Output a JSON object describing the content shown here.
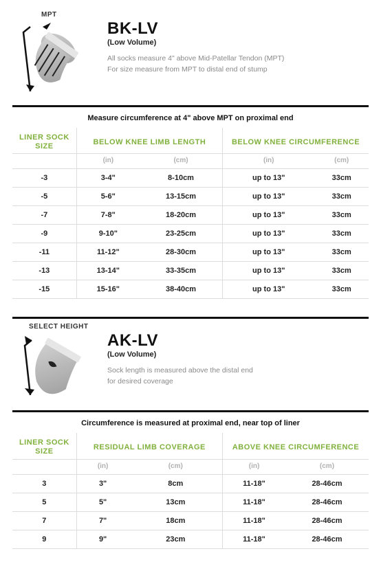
{
  "colors": {
    "accent": "#81b13d",
    "rule": "#111111",
    "greyText": "#8a8a8a",
    "lightGrey": "#b0b0b0",
    "border": "#dddddd"
  },
  "bk": {
    "figLabel": "MPT",
    "title": "BK-LV",
    "subtitle": "(Low Volume)",
    "desc1": "All socks measure 4\" above Mid-Patellar Tendon (MPT)",
    "desc2": "For size measure from MPT to distal end of stump",
    "caption": "Measure circumference at 4\" above MPT on proximal end",
    "headers": {
      "size": "LINER SOCK SIZE",
      "length": "BELOW KNEE LIMB LENGTH",
      "circ": "BELOW KNEE CIRCUMFERENCE"
    },
    "units": {
      "in": "(in)",
      "cm": "(cm)"
    },
    "rows": [
      {
        "size": "-3",
        "len_in": "3-4\"",
        "len_cm": "8-10cm",
        "circ_in": "up to 13\"",
        "circ_cm": "33cm"
      },
      {
        "size": "-5",
        "len_in": "5-6\"",
        "len_cm": "13-15cm",
        "circ_in": "up to 13\"",
        "circ_cm": "33cm"
      },
      {
        "size": "-7",
        "len_in": "7-8\"",
        "len_cm": "18-20cm",
        "circ_in": "up to 13\"",
        "circ_cm": "33cm"
      },
      {
        "size": "-9",
        "len_in": "9-10\"",
        "len_cm": "23-25cm",
        "circ_in": "up to 13\"",
        "circ_cm": "33cm"
      },
      {
        "size": "-11",
        "len_in": "11-12\"",
        "len_cm": "28-30cm",
        "circ_in": "up to 13\"",
        "circ_cm": "33cm"
      },
      {
        "size": "-13",
        "len_in": "13-14\"",
        "len_cm": "33-35cm",
        "circ_in": "up to 13\"",
        "circ_cm": "33cm"
      },
      {
        "size": "-15",
        "len_in": "15-16\"",
        "len_cm": "38-40cm",
        "circ_in": "up to 13\"",
        "circ_cm": "33cm"
      }
    ]
  },
  "ak": {
    "figLabel": "SELECT HEIGHT",
    "title": "AK-LV",
    "subtitle": "(Low Volume)",
    "desc1": "Sock length is measured above the distal end",
    "desc2": "for desired coverage",
    "caption": "Circumference is measured at proximal end, near top of liner",
    "headers": {
      "size": "LINER SOCK SIZE",
      "length": "RESIDUAL LIMB COVERAGE",
      "circ": "ABOVE KNEE CIRCUMFERENCE"
    },
    "units": {
      "in": "(in)",
      "cm": "(cm)"
    },
    "rows": [
      {
        "size": "3",
        "len_in": "3\"",
        "len_cm": "8cm",
        "circ_in": "11-18\"",
        "circ_cm": "28-46cm"
      },
      {
        "size": "5",
        "len_in": "5\"",
        "len_cm": "13cm",
        "circ_in": "11-18\"",
        "circ_cm": "28-46cm"
      },
      {
        "size": "7",
        "len_in": "7\"",
        "len_cm": "18cm",
        "circ_in": "11-18\"",
        "circ_cm": "28-46cm"
      },
      {
        "size": "9",
        "len_in": "9\"",
        "len_cm": "23cm",
        "circ_in": "11-18\"",
        "circ_cm": "28-46cm"
      }
    ]
  }
}
